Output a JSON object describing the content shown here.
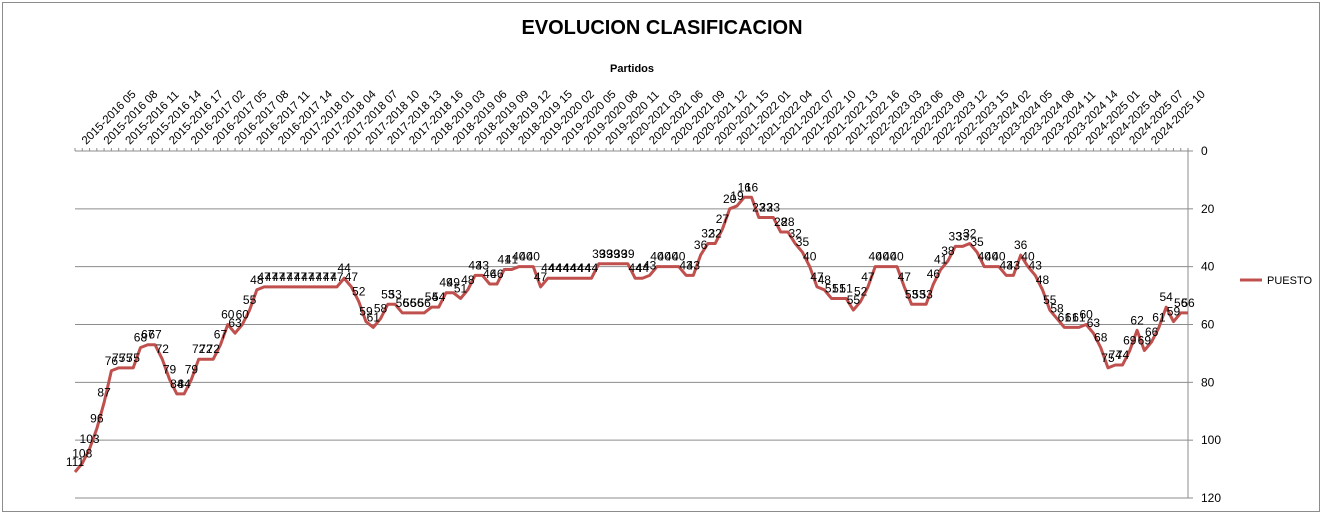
{
  "chart_data": {
    "type": "line",
    "title": "EVOLUCION CLASIFICACION",
    "xlabel": "Partidos",
    "ylabel": "",
    "ylim": [
      0,
      120
    ],
    "y_reversed": true,
    "y_ticks": [
      0,
      20,
      40,
      60,
      80,
      100,
      120
    ],
    "y_axis_position": "right",
    "x_axis_position": "top",
    "grid": true,
    "legend_placement": "right",
    "x_tick_labels": [
      "2015-2016 05",
      "2015-2016 08",
      "2015-2016 11",
      "2015-2016 14",
      "2015-2016 17",
      "2016-2017 02",
      "2016-2017 05",
      "2016-2017 08",
      "2016-2017 11",
      "2016-2017 14",
      "2017-2018 01",
      "2017-2018 04",
      "2017-2018 07",
      "2017-2018 10",
      "2017-2018 13",
      "2017-2018 16",
      "2018-2019 03",
      "2018-2019 06",
      "2018-2019 09",
      "2018-2019 12",
      "2018-2019 15",
      "2019-2020 02",
      "2019-2020 05",
      "2019-2020 08",
      "2019-2020 11",
      "2020-2021 03",
      "2020-2021 06",
      "2020-2021 09",
      "2020-2021 12",
      "2020-2021 15",
      "2021-2022 01",
      "2021-2022 04",
      "2021-2022 07",
      "2021-2022 10",
      "2021-2022 13",
      "2021-2022 16",
      "2022-2023 03",
      "2022-2023 06",
      "2022-2023 09",
      "2022-2023 12",
      "2022-2023 15",
      "2023-2024 02",
      "2023-2024 05",
      "2023-2024 08",
      "2023-2024 11",
      "2023-2024 14",
      "2024-2025 01",
      "2024-2025 04",
      "2024-2025 07",
      "2024-2025 10"
    ],
    "series": [
      {
        "name": "PUESTO",
        "color": "#c0504d",
        "values": [
          111,
          108,
          103,
          96,
          87,
          76,
          75,
          75,
          75,
          68,
          67,
          67,
          72,
          79,
          84,
          84,
          79,
          72,
          72,
          72,
          67,
          60,
          63,
          60,
          55,
          48,
          47,
          47,
          47,
          47,
          47,
          47,
          47,
          47,
          47,
          47,
          47,
          44,
          47,
          52,
          59,
          61,
          58,
          53,
          53,
          56,
          56,
          56,
          56,
          54,
          54,
          49,
          49,
          51,
          48,
          43,
          43,
          46,
          46,
          41,
          41,
          40,
          40,
          40,
          47,
          44,
          44,
          44,
          44,
          44,
          44,
          44,
          39,
          39,
          39,
          39,
          39,
          44,
          44,
          43,
          40,
          40,
          40,
          40,
          43,
          43,
          36,
          32,
          32,
          27,
          20,
          19,
          16,
          16,
          23,
          23,
          23,
          28,
          28,
          32,
          35,
          40,
          47,
          48,
          51,
          51,
          51,
          55,
          52,
          47,
          40,
          40,
          40,
          40,
          47,
          53,
          53,
          53,
          46,
          41,
          38,
          33,
          33,
          32,
          35,
          40,
          40,
          40,
          43,
          43,
          36,
          40,
          43,
          48,
          55,
          58,
          61,
          61,
          61,
          60,
          63,
          68,
          75,
          74,
          74,
          69,
          62,
          69,
          66,
          61,
          54,
          59,
          56,
          56
        ]
      }
    ]
  }
}
